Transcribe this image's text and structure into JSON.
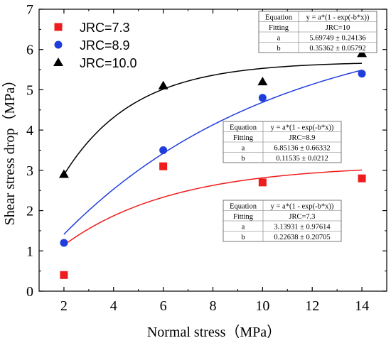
{
  "chart_data": {
    "type": "scatter",
    "xlabel": "Normal stress（MPa）",
    "ylabel": "Shear stress drop（MPa）",
    "xlim": [
      1,
      15
    ],
    "ylim": [
      0,
      7
    ],
    "xticks": [
      "2",
      "4",
      "6",
      "8",
      "10",
      "12",
      "14"
    ],
    "yticks": [
      "0",
      "1",
      "2",
      "3",
      "4",
      "5",
      "6",
      "7"
    ],
    "grid": false,
    "legend_position": "top-left",
    "series": [
      {
        "name": "JRC=7.3",
        "marker": "square",
        "color": "#ee1c1c",
        "x": [
          2,
          6,
          10,
          14
        ],
        "y": [
          0.4,
          3.1,
          2.7,
          2.8
        ],
        "fit": {
          "a": 3.13931,
          "b": 0.22638
        }
      },
      {
        "name": "JRC=8.9",
        "marker": "circle",
        "color": "#1f3ddd",
        "x": [
          2,
          6,
          10,
          14
        ],
        "y": [
          1.2,
          3.5,
          4.8,
          5.4
        ],
        "fit": {
          "a": 6.85136,
          "b": 0.11535
        }
      },
      {
        "name": "JRC=10.0",
        "marker": "triangle",
        "color": "#000000",
        "x": [
          2,
          6,
          10,
          14
        ],
        "y": [
          2.9,
          5.1,
          5.2,
          5.9
        ],
        "fit": {
          "a": 5.69749,
          "b": 0.35362
        }
      }
    ],
    "fit_tables": [
      {
        "series": "JRC=10.0",
        "equation_label": "Equation",
        "equation": "y = a*(1 - exp(-b*x))",
        "fitting_label": "Fitting",
        "fitting": "JRC=10",
        "a_label": "a",
        "a": "5.69749 ± 0.24136",
        "b_label": "b",
        "b": "0.35362 ± 0.05792"
      },
      {
        "series": "JRC=8.9",
        "equation_label": "Equation",
        "equation": "y = a*(1 - exp(-b*x))",
        "fitting_label": "Fitting",
        "fitting": "JRC=8.9",
        "a_label": "a",
        "a": "6.85136 ± 0.66332",
        "b_label": "b",
        "b": "0.11535 ± 0.0212"
      },
      {
        "series": "JRC=7.3",
        "equation_label": "Equation",
        "equation": "y = a*(1 - exp(-b*x))",
        "fitting_label": "Fitting",
        "fitting": "JRC=7.3",
        "a_label": "a",
        "a": "3.13931 ± 0.97614",
        "b_label": "b",
        "b": "0.22638 ± 0.20705"
      }
    ]
  }
}
